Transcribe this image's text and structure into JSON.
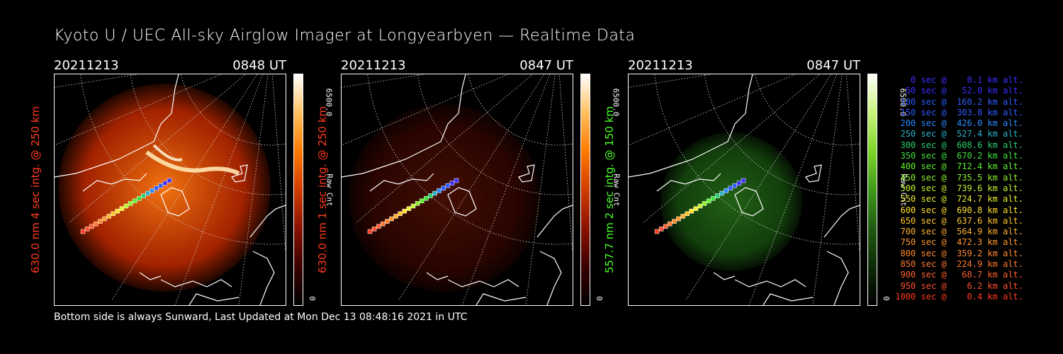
{
  "title": "Kyoto U / UEC All-sky Airglow Imager at Longyearbyen — Realtime Data",
  "footer": "Bottom side is always Sunward, Last Updated at Mon Dec 13 08:48:16 2021 in UTC",
  "panels": [
    {
      "date": "20211213",
      "time": "0848 UT",
      "ylabel": "630.0 nm 4 sec intg. @ 250 km",
      "label_color": "#ff3b1f",
      "cbar_max": "6500.0",
      "cbar_label": "Raw Cnt",
      "cbar_min": "0",
      "colormap": [
        "#000000",
        "#3a0000",
        "#8a1200",
        "#d23c00",
        "#ff7a00",
        "#ffc060",
        "#ffffff"
      ]
    },
    {
      "date": "20211213",
      "time": "0847 UT",
      "ylabel": "630.0 nm 1 sec intg. @ 250 km",
      "label_color": "#ff3b1f",
      "cbar_max": "6500.0",
      "cbar_label": "Raw Cnt",
      "cbar_min": "0",
      "colormap": [
        "#000000",
        "#3a0000",
        "#8a1200",
        "#d23c00",
        "#ff7a00",
        "#ffc060",
        "#ffffff"
      ]
    },
    {
      "date": "20211213",
      "time": "0847 UT",
      "ylabel": "557.7 nm 2 sec intg. @ 150 km",
      "label_color": "#4cff2a",
      "cbar_max": "6500.0",
      "cbar_label": "Raw Cnt",
      "cbar_min": "0",
      "colormap": [
        "#000000",
        "#0c2a06",
        "#1f5a10",
        "#3f9a1a",
        "#7ed62a",
        "#c8f27a",
        "#ffffff"
      ]
    }
  ],
  "legend": [
    {
      "text": "0 sec @    0.1 km alt.",
      "color": "#3b30ff"
    },
    {
      "text": "50 sec @   52.0 km alt.",
      "color": "#3b30ff"
    },
    {
      "text": "100 sec @  160.2 km alt.",
      "color": "#2e5cff"
    },
    {
      "text": "150 sec @  303.8 km alt.",
      "color": "#2e5cff"
    },
    {
      "text": "200 sec @  426.0 km alt.",
      "color": "#2a8cff"
    },
    {
      "text": "250 sec @  527.4 km alt.",
      "color": "#2ab0c8"
    },
    {
      "text": "300 sec @  608.6 km alt.",
      "color": "#2ad070"
    },
    {
      "text": "350 sec @  670.2 km alt.",
      "color": "#40e040"
    },
    {
      "text": "400 sec @  712.4 km alt.",
      "color": "#60f030"
    },
    {
      "text": "450 sec @  735.5 km alt.",
      "color": "#90f030"
    },
    {
      "text": "500 sec @  739.6 km alt.",
      "color": "#c0f030"
    },
    {
      "text": "550 sec @  724.7 km alt.",
      "color": "#e8f030"
    },
    {
      "text": "600 sec @  690.8 km alt.",
      "color": "#ffe030"
    },
    {
      "text": "650 sec @  637.6 km alt.",
      "color": "#ffc830"
    },
    {
      "text": "700 sec @  564.9 km alt.",
      "color": "#ffb030"
    },
    {
      "text": "750 sec @  472.3 km alt.",
      "color": "#ff9830"
    },
    {
      "text": "800 sec @  359.2 km alt.",
      "color": "#ff8830"
    },
    {
      "text": "850 sec @  224.9 km alt.",
      "color": "#ff7830"
    },
    {
      "text": "900 sec @   68.7 km alt.",
      "color": "#ff6030"
    },
    {
      "text": "950 sec @    6.2 km alt.",
      "color": "#ff5030"
    },
    {
      "text": "1000 sec @    0.4 km alt.",
      "color": "#ff3b1f"
    }
  ]
}
